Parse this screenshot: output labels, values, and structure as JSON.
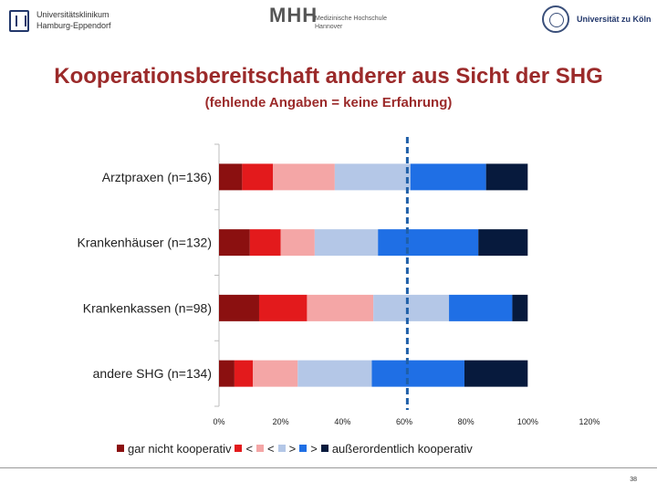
{
  "header": {
    "uke_logo_text": "Universitätsklinikum Hamburg-Eppendorf",
    "mhh_logo_letters": "MHH",
    "mhh_logo_text": "Medizinische Hochschule Hannover",
    "koeln_logo_text": "Universität zu Köln"
  },
  "slide": {
    "page_number": "38"
  },
  "colors": {
    "series": [
      "#8b1010",
      "#e31a1c",
      "#f4a6a6",
      "#b4c7e7",
      "#1f6fe5",
      "#071a3d"
    ],
    "title": "#9b2a2a",
    "reference_line": "#1f5fa8"
  },
  "chart_data": {
    "type": "bar",
    "orientation": "horizontal",
    "stacked": true,
    "title": "Kooperationsbereitschaft anderer aus Sicht der SHG",
    "subtitle": "(fehlende Angaben = keine Erfahrung)",
    "categories": [
      "Arztpraxen (n=136)",
      "Krankenhäuser (n=132)",
      "Krankenkassen (n=98)",
      "andere SHG (n=134)"
    ],
    "series": [
      {
        "name": "gar nicht kooperativ",
        "values": [
          7.5,
          10,
          13,
          5
        ]
      },
      {
        "name": "<",
        "values": [
          10,
          10,
          15.5,
          6
        ]
      },
      {
        "name": "<",
        "values": [
          20,
          11,
          21.5,
          14.5
        ]
      },
      {
        "name": ">",
        "values": [
          24.5,
          20.5,
          24.5,
          24
        ]
      },
      {
        "name": ">",
        "values": [
          24.5,
          32.5,
          20.5,
          30
        ]
      },
      {
        "name": "außerordentlich kooperativ",
        "values": [
          13.5,
          16,
          5,
          20.5
        ]
      }
    ],
    "xlim": [
      0,
      120
    ],
    "xticks": [
      "0%",
      "20%",
      "40%",
      "60%",
      "80%",
      "100%",
      "120%"
    ],
    "reference_line_x": 61,
    "grid": false,
    "legend_position": "bottom"
  }
}
